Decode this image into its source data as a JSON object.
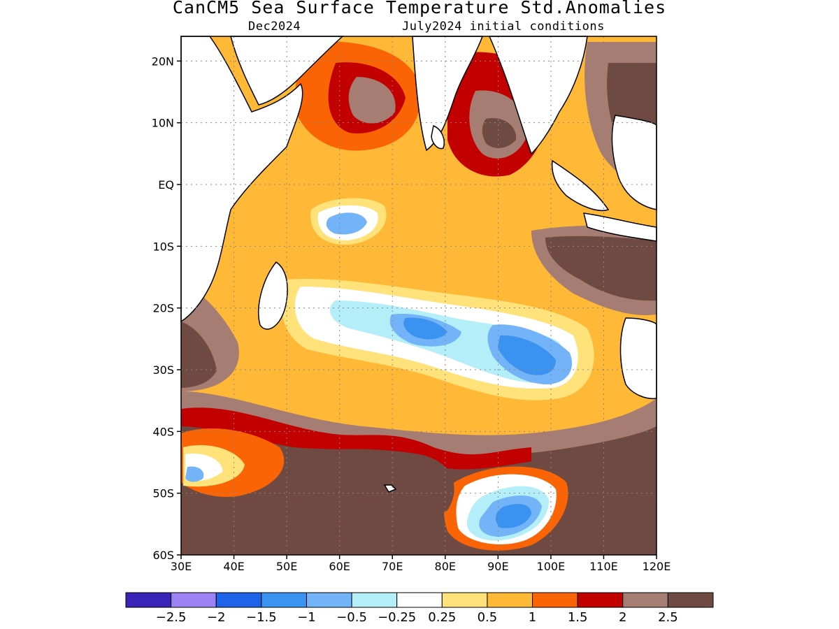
{
  "title": "CanCM5 Sea Surface Temperature Std.Anomalies",
  "subtitle_left": "Dec2024",
  "subtitle_right": "July2024 initial conditions",
  "map": {
    "lon_range": [
      30,
      120
    ],
    "lat_range": [
      -60,
      24
    ],
    "lon_ticks": [
      "30E",
      "40E",
      "50E",
      "60E",
      "70E",
      "80E",
      "90E",
      "100E",
      "110E",
      "120E"
    ],
    "lat_ticks": [
      "20N",
      "10N",
      "EQ",
      "10S",
      "20S",
      "30S",
      "40S",
      "50S",
      "60S"
    ],
    "grid": true
  },
  "colorbar": {
    "colors": [
      "#3a24b8",
      "#9d82f5",
      "#1f63e8",
      "#3a93f0",
      "#72b4f7",
      "#b3eef9",
      "#ffffff",
      "#ffe27a",
      "#ffb937",
      "#fa6405",
      "#c30000",
      "#a67d73",
      "#6e4a42"
    ],
    "labels": [
      "−2.5",
      "−2",
      "−1.5",
      "−1",
      "−0.5",
      "−0.25",
      "0.25",
      "0.5",
      "1",
      "1.5",
      "2",
      "2.5"
    ]
  }
}
